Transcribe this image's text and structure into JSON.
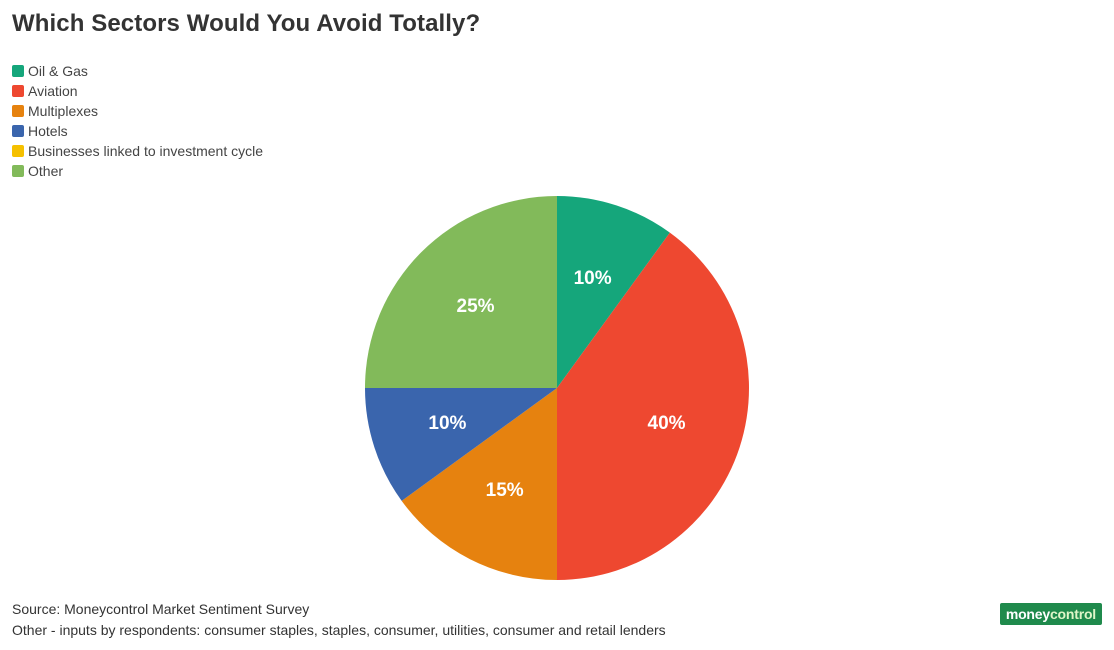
{
  "chart_data": {
    "type": "pie",
    "title": "Which Sectors Would You Avoid Totally?",
    "categories": [
      "Oil & Gas",
      "Aviation",
      "Multiplexes",
      "Hotels",
      "Businesses linked to investment cycle",
      "Other"
    ],
    "values": [
      10,
      40,
      15,
      10,
      0,
      25
    ],
    "labels": [
      "10%",
      "40%",
      "15%",
      "10%",
      "",
      "25%"
    ],
    "colors": [
      "#15a67b",
      "#ee4830",
      "#e6820f",
      "#3a65ad",
      "#f5c000",
      "#82ba5a"
    ],
    "legend_position": "top-left"
  },
  "footer": {
    "source": "Source: Moneycontrol Market Sentiment Survey",
    "note": "Other - inputs by respondents: consumer staples, staples, consumer, utilities, consumer and retail lenders"
  },
  "logo": {
    "part1": "money",
    "part2": "control"
  }
}
